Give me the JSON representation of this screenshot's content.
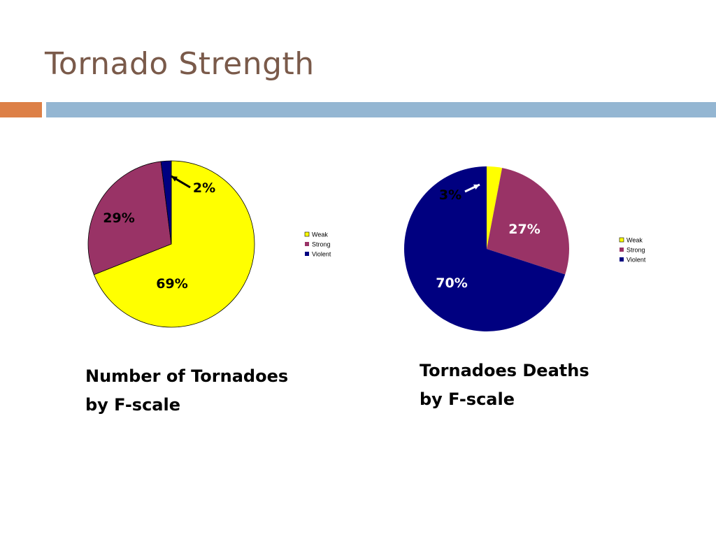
{
  "slide": {
    "title": "Tornado Strength"
  },
  "colors": {
    "weak": "#ffff00",
    "strong": "#993366",
    "violent": "#000080",
    "title": "#7a5a4a",
    "accent_orange": "#dd8047",
    "accent_blue": "#94b6d2"
  },
  "chart_data": [
    {
      "type": "pie",
      "title": "",
      "caption_line1": "Number of Tornadoes",
      "caption_line2": "by F-scale",
      "categories": [
        "Weak",
        "Strong",
        "Violent"
      ],
      "values": [
        69,
        29,
        2
      ],
      "labels": [
        "69%",
        "29%",
        "2%"
      ],
      "legend": {
        "entries": [
          "Weak",
          "Strong",
          "Violent"
        ],
        "placement": "right"
      }
    },
    {
      "type": "pie",
      "title": "",
      "caption_line1": "Tornadoes Deaths",
      "caption_line2": "by F-scale",
      "categories": [
        "Weak",
        "Strong",
        "Violent"
      ],
      "values": [
        3,
        27,
        70
      ],
      "labels": [
        "3%",
        "27%",
        "70%"
      ],
      "legend": {
        "entries": [
          "Weak",
          "Strong",
          "Violent"
        ],
        "placement": "right"
      }
    }
  ]
}
